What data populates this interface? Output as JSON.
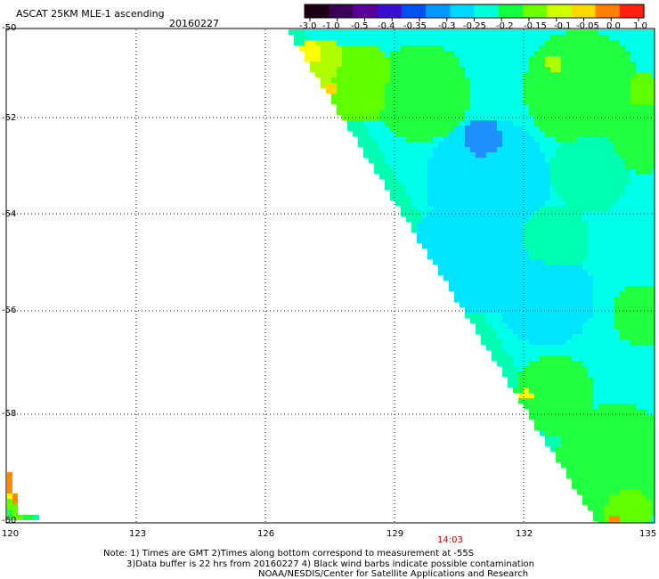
{
  "header": {
    "title": "ASCAT 25KM MLE-1 ascending",
    "date": "20160227"
  },
  "colorbar": {
    "labels": [
      "-3.0",
      "-1.0",
      "-0.5",
      "-0.4",
      "-0.35",
      "-0.3",
      "-0.25",
      "-0.2",
      "-0.15",
      "-0.1",
      "-0.05",
      "0.0",
      "1.0"
    ],
    "colors": [
      "#1a0010",
      "#3a0058",
      "#5a0098",
      "#3a10d0",
      "#0050f0",
      "#0098ff",
      "#00d8ff",
      "#00ffd8",
      "#10ff40",
      "#70ff00",
      "#d0ff00",
      "#ffd800",
      "#ff8000",
      "#ff2010"
    ]
  },
  "map": {
    "lat_labels": [
      "-50",
      "-52",
      "-54",
      "-56",
      "-58",
      "-60"
    ],
    "lon_labels": [
      "120",
      "123",
      "126",
      "129",
      "132",
      "135"
    ],
    "time_label": "14:03",
    "palette": {
      "blue": "#1e90ff",
      "lightblue": "#00e5ff",
      "cyan": "#00ffe8",
      "aqua": "#00ffb0",
      "green": "#20ff40",
      "lime": "#60ff00",
      "yellowgreen": "#b0ff00",
      "yellow": "#ffff00",
      "gold": "#ffd800",
      "orange": "#ff8c00"
    }
  },
  "footer": {
    "line1": "Note: 1) Times are GMT 2)Times along bottom correspond to measurement at -55S",
    "line2": "3)Data buffer is 22 hrs from 20160227 4) Black wind barbs indicate possible contamination",
    "line3": "NOAA/NESDIS/Center for Satellite Applications and Research"
  }
}
